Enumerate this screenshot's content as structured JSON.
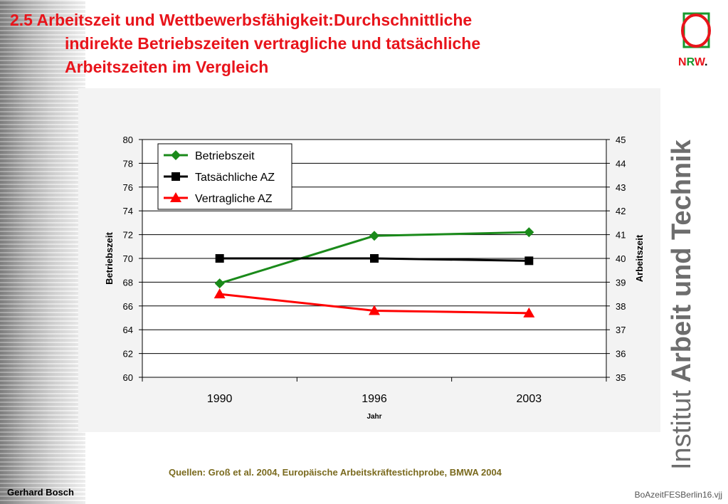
{
  "slide": {
    "title_line1": "2.5 Arbeitszeit und Wettbewerbsfähigkeit:Durchschnittliche",
    "title_line2": "indirekte Betriebszeiten vertragliche und tatsächliche",
    "title_line3": "Arbeitszeiten im Vergleich",
    "source": "Quellen: Groß et al. 2004, Europäische Arbeitskräftestichprobe, BMWA 2004",
    "author": "Gerhard Bosch",
    "file_name": "BoAzeitFESBerlin16.vjj",
    "logo": {
      "n": "N",
      "r": "R",
      "w": "W",
      "dot": "."
    },
    "institute": {
      "prefix": "Institut ",
      "name": "Arbeit und Technik"
    },
    "colors": {
      "title": "#e8141b",
      "logo_green": "#179a2e",
      "logo_red": "#e8141b"
    }
  },
  "chart_data": {
    "type": "line",
    "categories": [
      "1990",
      "1996",
      "2003"
    ],
    "xlabel": "Jahr",
    "ylabel": "Betriebszeit",
    "ylabel_right": "Arbeitszeit",
    "ylim": [
      60,
      80
    ],
    "ylim_right": [
      35,
      45
    ],
    "yticks": [
      "60",
      "62",
      "64",
      "66",
      "68",
      "70",
      "72",
      "74",
      "76",
      "78",
      "80"
    ],
    "yticks_right": [
      "35",
      "36",
      "37",
      "38",
      "39",
      "40",
      "41",
      "42",
      "43",
      "44",
      "45"
    ],
    "grid": true,
    "legend_position": "top-left",
    "series": [
      {
        "name": "Betriebszeit",
        "axis": "left",
        "values": [
          67.9,
          71.9,
          72.2
        ],
        "color": "#1a8a1a",
        "marker": "diamond"
      },
      {
        "name": "Tatsächliche AZ",
        "axis": "right",
        "values": [
          40.0,
          40.0,
          39.9
        ],
        "color": "#000000",
        "marker": "square"
      },
      {
        "name": "Vertragliche AZ",
        "axis": "right",
        "values": [
          38.5,
          37.8,
          37.7
        ],
        "color": "#ff0000",
        "marker": "triangle"
      }
    ]
  }
}
